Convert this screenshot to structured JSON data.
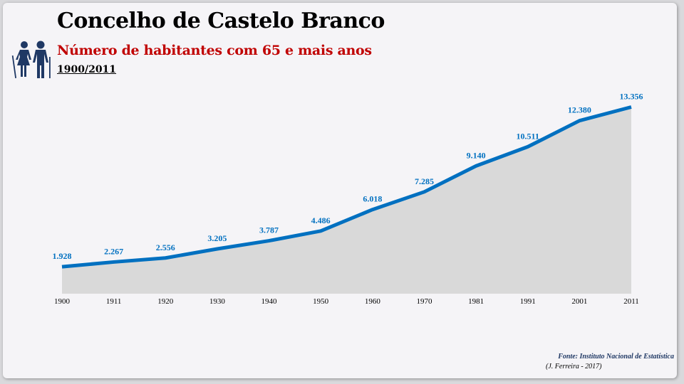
{
  "header": {
    "title": "Concelho de Castelo Branco",
    "subtitle": "Número de habitantes com 65 e mais anos",
    "period": "1900/2011"
  },
  "icon": "elderly-couple-icon",
  "footer": {
    "source": "Fonte: Instituto Nacional de Estatística",
    "author": "(J. Ferreira - 2017)"
  },
  "colors": {
    "line": "#0070c0",
    "area": "#d9d9d9",
    "label": "#0070c0",
    "subtitle": "#c00000",
    "icon": "#1f3864"
  },
  "chart_data": {
    "type": "area",
    "categories": [
      "1900",
      "1911",
      "1920",
      "1930",
      "1940",
      "1950",
      "1960",
      "1970",
      "1981",
      "1991",
      "2001",
      "2011"
    ],
    "values": [
      1928,
      2267,
      2556,
      3205,
      3787,
      4486,
      6018,
      7285,
      9140,
      10511,
      12380,
      13356
    ],
    "data_labels": [
      "1.928",
      "2.267",
      "2.556",
      "3.205",
      "3.787",
      "4.486",
      "6.018",
      "7.285",
      "9.140",
      "10.511",
      "12.380",
      "13.356"
    ],
    "title": "",
    "xlabel": "",
    "ylabel": "",
    "ylim": [
      0,
      14500
    ],
    "grid": false,
    "legend": "none"
  }
}
